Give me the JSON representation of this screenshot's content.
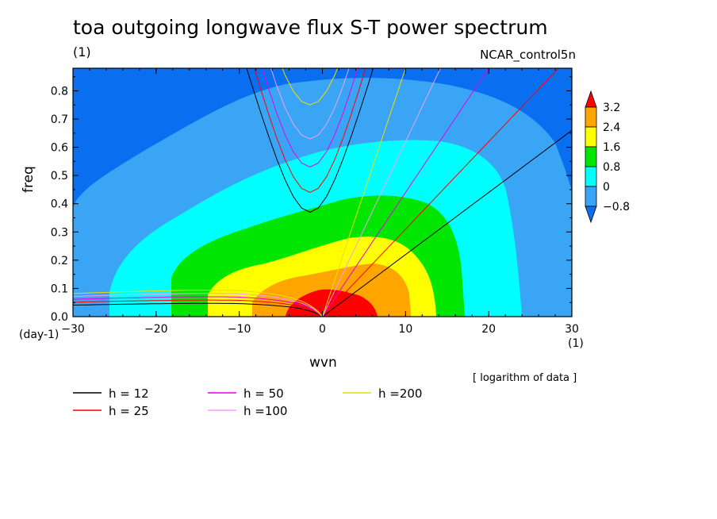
{
  "chart_data": {
    "type": "contour",
    "title": "toa outgoing longwave flux S-T power spectrum",
    "subtitle_left": "(1)",
    "subtitle_right": "NCAR_control5n",
    "xlabel": "wvn",
    "x_units": "(1)",
    "ylabel": "freq",
    "y_units": "(day-1)",
    "note": "[ logarithm of data ]",
    "xlim": [
      -30,
      30
    ],
    "ylim": [
      0.0,
      0.88
    ],
    "x_ticks": [
      -30,
      -20,
      -10,
      0,
      10,
      20,
      30
    ],
    "x_tick_labels": [
      "−30",
      "−20",
      "−10",
      "0",
      "10",
      "20",
      "30"
    ],
    "y_ticks": [
      0.0,
      0.1,
      0.2,
      0.3,
      0.4,
      0.5,
      0.6,
      0.7,
      0.8
    ],
    "y_tick_labels": [
      "0.0",
      "0.1",
      "0.2",
      "0.3",
      "0.4",
      "0.5",
      "0.6",
      "0.7",
      "0.8"
    ],
    "colorbar": {
      "levels": [
        -0.8,
        0,
        0.8,
        1.6,
        2.4,
        3.2
      ],
      "labels": [
        "−0.8",
        "0",
        "0.8",
        "1.6",
        "2.4",
        "3.2"
      ],
      "colors": [
        "#0a6ef0",
        "#3aa5f5",
        "#00ffff",
        "#00e600",
        "#ffff00",
        "#ffa500",
        "#ff0000"
      ]
    },
    "dispersion_curves": [
      {
        "name": "h = 12",
        "color": "#000000"
      },
      {
        "name": "h = 25",
        "color": "#ff0000"
      },
      {
        "name": "h = 50",
        "color": "#e600e6"
      },
      {
        "name": "h =100",
        "color": "#f0a0f0"
      },
      {
        "name": "h =200",
        "color": "#f0dc00"
      }
    ]
  }
}
